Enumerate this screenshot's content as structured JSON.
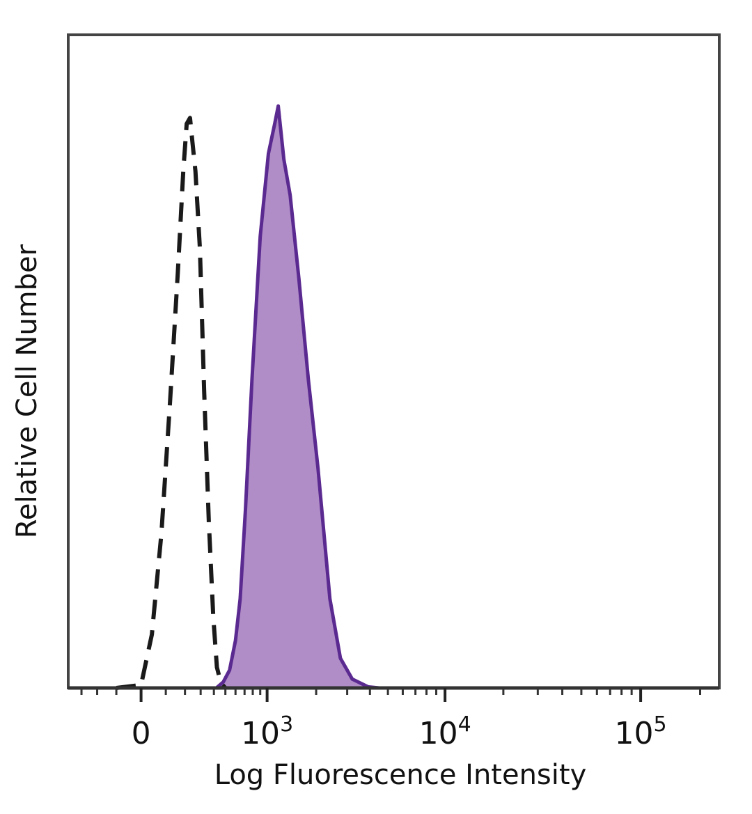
{
  "chart_data": {
    "type": "area",
    "title": "",
    "xlabel": "Log Fluorescence Intensity",
    "ylabel": "Relative Cell Number",
    "x_scale": "biexponential",
    "xlim": [
      -400,
      250000
    ],
    "ylim": [
      0,
      1.1
    ],
    "x_ticks": [
      {
        "value": 0,
        "base": "0",
        "exp": ""
      },
      {
        "value": 1000,
        "base": "10",
        "exp": "3"
      },
      {
        "value": 10000,
        "base": "10",
        "exp": "4"
      },
      {
        "value": 100000,
        "base": "10",
        "exp": "5"
      }
    ],
    "grid": false,
    "legend": "none",
    "series": [
      {
        "style": "dashed",
        "color": "#1a1a1a",
        "fill": "none",
        "points": [
          [
            -100,
            0
          ],
          [
            0,
            0.005
          ],
          [
            40,
            0.09
          ],
          [
            80,
            0.26
          ],
          [
            120,
            0.48
          ],
          [
            160,
            0.7
          ],
          [
            190,
            0.87
          ],
          [
            210,
            0.95
          ],
          [
            230,
            0.96
          ],
          [
            245,
            0.92
          ],
          [
            265,
            0.87
          ],
          [
            295,
            0.74
          ],
          [
            325,
            0.5
          ],
          [
            360,
            0.28
          ],
          [
            395,
            0.12
          ],
          [
            425,
            0.035
          ],
          [
            460,
            0.008
          ],
          [
            500,
            0.0
          ]
        ]
      },
      {
        "style": "solid",
        "color": "#5b2a91",
        "fill": "#b08dc7",
        "points": [
          [
            360,
            0
          ],
          [
            420,
            0.0
          ],
          [
            480,
            0.01
          ],
          [
            540,
            0.03
          ],
          [
            600,
            0.08
          ],
          [
            650,
            0.15
          ],
          [
            710,
            0.3
          ],
          [
            790,
            0.52
          ],
          [
            900,
            0.76
          ],
          [
            1020,
            0.9
          ],
          [
            1120,
            0.95
          ],
          [
            1180,
            0.98
          ],
          [
            1280,
            0.89
          ],
          [
            1400,
            0.83
          ],
          [
            1580,
            0.69
          ],
          [
            1800,
            0.52
          ],
          [
            2050,
            0.37
          ],
          [
            2400,
            0.15
          ],
          [
            2750,
            0.05
          ],
          [
            3200,
            0.015
          ],
          [
            3900,
            0.002
          ],
          [
            4500,
            0.0
          ]
        ]
      }
    ]
  }
}
